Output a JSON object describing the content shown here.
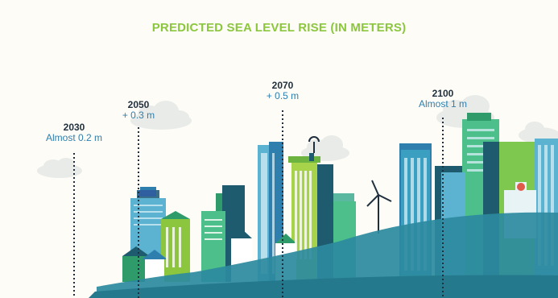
{
  "title": "PREDICTED SEA LEVEL RISE (IN METERS)",
  "colors": {
    "title": "#8cc63f",
    "year": "#1f2f3d",
    "amount": "#2f7fae",
    "water": "#2d8a9e",
    "background": "#fdfcf7"
  },
  "milestones": [
    {
      "year": "2030",
      "amount": "Almost 0.2 m"
    },
    {
      "year": "2050",
      "amount": "+ 0.3 m"
    },
    {
      "year": "2070",
      "amount": "+ 0.5 m"
    },
    {
      "year": "2100",
      "amount": "Almost 1 m"
    }
  ]
}
